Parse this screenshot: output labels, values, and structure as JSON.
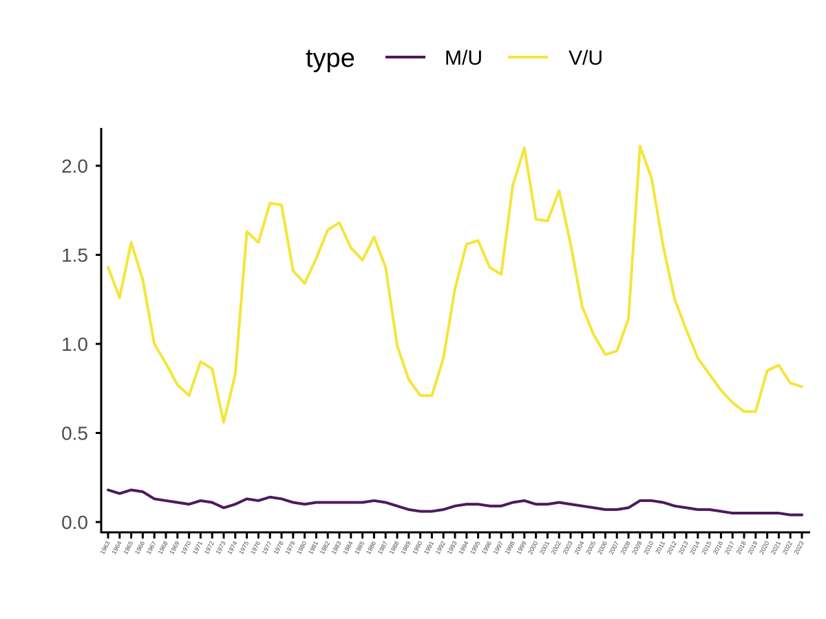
{
  "chart_data": {
    "type": "line",
    "title": "",
    "xlabel": "",
    "ylabel": "",
    "ylim": [
      0,
      2.2
    ],
    "yticks": [
      0.0,
      0.5,
      1.0,
      1.5,
      2.0
    ],
    "ytick_labels": [
      "0.0",
      "0.5",
      "1.0",
      "1.5",
      "2.0"
    ],
    "grid": false,
    "legend": {
      "title": "type",
      "position": "top"
    },
    "x": [
      "1963",
      "1964",
      "1965",
      "1966",
      "1967",
      "1968",
      "1969",
      "1970",
      "1971",
      "1972",
      "1973",
      "1974",
      "1975",
      "1976",
      "1977",
      "1978",
      "1979",
      "1980",
      "1981",
      "1982",
      "1983",
      "1984",
      "1985",
      "1986",
      "1987",
      "1988",
      "1989",
      "1990",
      "1991",
      "1992",
      "1993",
      "1994",
      "1995",
      "1996",
      "1997",
      "1998",
      "1999",
      "2000",
      "2001",
      "2002",
      "2003",
      "2004",
      "2005",
      "2006",
      "2007",
      "2008",
      "2009",
      "2010",
      "2011",
      "2012",
      "2013",
      "2014",
      "2015",
      "2016",
      "2017",
      "2018",
      "2019",
      "2020",
      "2021",
      "2022",
      "2023"
    ],
    "series": [
      {
        "name": "M/U",
        "color": "#4d1a5e",
        "values": [
          0.18,
          0.16,
          0.18,
          0.17,
          0.13,
          0.12,
          0.11,
          0.1,
          0.12,
          0.11,
          0.08,
          0.1,
          0.13,
          0.12,
          0.14,
          0.13,
          0.11,
          0.1,
          0.11,
          0.11,
          0.11,
          0.11,
          0.11,
          0.12,
          0.11,
          0.09,
          0.07,
          0.06,
          0.06,
          0.07,
          0.09,
          0.1,
          0.1,
          0.09,
          0.09,
          0.11,
          0.12,
          0.1,
          0.1,
          0.11,
          0.1,
          0.09,
          0.08,
          0.07,
          0.07,
          0.08,
          0.12,
          0.12,
          0.11,
          0.09,
          0.08,
          0.07,
          0.07,
          0.06,
          0.05,
          0.05,
          0.05,
          0.05,
          0.05,
          0.04,
          0.04
        ]
      },
      {
        "name": "V/U",
        "color": "#f5e53b",
        "values": [
          1.43,
          1.26,
          1.57,
          1.36,
          1.0,
          0.89,
          0.77,
          0.71,
          0.9,
          0.86,
          0.56,
          0.83,
          1.63,
          1.57,
          1.79,
          1.78,
          1.41,
          1.34,
          1.48,
          1.64,
          1.68,
          1.54,
          1.47,
          1.6,
          1.43,
          0.99,
          0.8,
          0.71,
          0.71,
          0.92,
          1.31,
          1.56,
          1.58,
          1.43,
          1.39,
          1.89,
          2.1,
          1.7,
          1.69,
          1.86,
          1.56,
          1.21,
          1.05,
          0.94,
          0.96,
          1.14,
          2.11,
          1.93,
          1.55,
          1.25,
          1.08,
          0.92,
          0.83,
          0.74,
          0.67,
          0.62,
          0.62,
          0.85,
          0.88,
          0.78,
          0.76
        ]
      }
    ]
  }
}
